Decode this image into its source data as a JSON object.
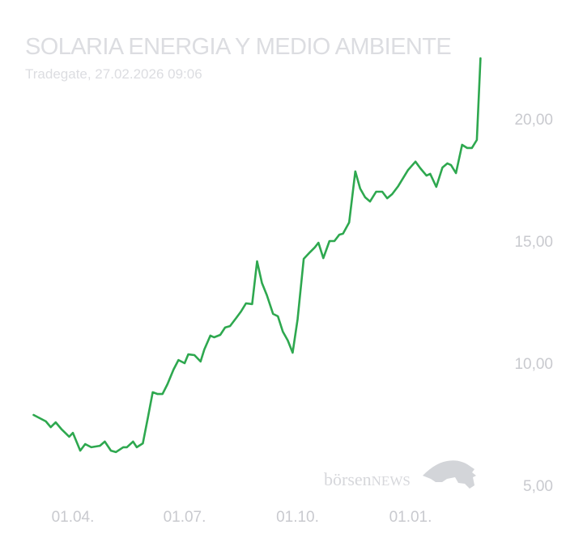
{
  "header": {
    "title": "SOLARIA ENERGIA Y MEDIO AMBIENTE",
    "subtitle": "Tradegate, 27.02.2026 09:06"
  },
  "watermark": {
    "brand": "börsenNEWS",
    "part1": "börsen",
    "part2": "NEWS"
  },
  "chart_data": {
    "type": "line",
    "title": "",
    "xlabel": "",
    "ylabel": "",
    "line_color": "#2ea84f",
    "y_axis_position": "right",
    "grid": false,
    "ylim": [
      5,
      22.5
    ],
    "y_ticks": [
      {
        "value": 5,
        "label": "5,00"
      },
      {
        "value": 10,
        "label": "10,00"
      },
      {
        "value": 15,
        "label": "15,00"
      },
      {
        "value": 20,
        "label": "20,00"
      }
    ],
    "x_ticks": [
      {
        "date": "2025-04-01",
        "label": "01.04."
      },
      {
        "date": "2025-07-01",
        "label": "01.07."
      },
      {
        "date": "2025-10-01",
        "label": "01.10."
      },
      {
        "date": "2026-01-01",
        "label": "01.01."
      }
    ],
    "series": [
      {
        "points": [
          [
            "2025-02-28",
            7.88
          ],
          [
            "2025-03-10",
            7.62
          ],
          [
            "2025-03-14",
            7.38
          ],
          [
            "2025-03-18",
            7.58
          ],
          [
            "2025-03-23",
            7.28
          ],
          [
            "2025-03-29",
            6.99
          ],
          [
            "2025-04-01",
            7.15
          ],
          [
            "2025-04-07",
            6.42
          ],
          [
            "2025-04-11",
            6.69
          ],
          [
            "2025-04-16",
            6.56
          ],
          [
            "2025-04-23",
            6.62
          ],
          [
            "2025-04-27",
            6.79
          ],
          [
            "2025-05-02",
            6.42
          ],
          [
            "2025-05-06",
            6.36
          ],
          [
            "2025-05-12",
            6.56
          ],
          [
            "2025-05-15",
            6.56
          ],
          [
            "2025-05-20",
            6.79
          ],
          [
            "2025-05-23",
            6.56
          ],
          [
            "2025-05-28",
            6.72
          ],
          [
            "2025-06-01",
            7.75
          ],
          [
            "2025-06-05",
            8.81
          ],
          [
            "2025-06-09",
            8.74
          ],
          [
            "2025-06-13",
            8.74
          ],
          [
            "2025-06-17",
            9.14
          ],
          [
            "2025-06-22",
            9.74
          ],
          [
            "2025-06-26",
            10.13
          ],
          [
            "2025-07-01",
            10.0
          ],
          [
            "2025-07-04",
            10.36
          ],
          [
            "2025-07-09",
            10.33
          ],
          [
            "2025-07-14",
            10.07
          ],
          [
            "2025-07-17",
            10.56
          ],
          [
            "2025-07-22",
            11.13
          ],
          [
            "2025-07-25",
            11.06
          ],
          [
            "2025-07-30",
            11.16
          ],
          [
            "2025-08-03",
            11.46
          ],
          [
            "2025-08-07",
            11.52
          ],
          [
            "2025-08-12",
            11.85
          ],
          [
            "2025-08-16",
            12.12
          ],
          [
            "2025-08-20",
            12.45
          ],
          [
            "2025-08-25",
            12.42
          ],
          [
            "2025-08-29",
            14.17
          ],
          [
            "2025-09-02",
            13.28
          ],
          [
            "2025-09-06",
            12.78
          ],
          [
            "2025-09-11",
            12.02
          ],
          [
            "2025-09-15",
            11.92
          ],
          [
            "2025-09-19",
            11.29
          ],
          [
            "2025-09-23",
            10.93
          ],
          [
            "2025-09-27",
            10.43
          ],
          [
            "2025-10-01",
            11.79
          ],
          [
            "2025-10-06",
            14.27
          ],
          [
            "2025-10-11",
            14.54
          ],
          [
            "2025-10-15",
            14.74
          ],
          [
            "2025-10-18",
            14.93
          ],
          [
            "2025-10-22",
            14.3
          ],
          [
            "2025-10-27",
            15.0
          ],
          [
            "2025-10-31",
            15.0
          ],
          [
            "2025-11-04",
            15.26
          ],
          [
            "2025-11-07",
            15.3
          ],
          [
            "2025-11-12",
            15.76
          ],
          [
            "2025-11-17",
            17.85
          ],
          [
            "2025-11-21",
            17.15
          ],
          [
            "2025-11-25",
            16.79
          ],
          [
            "2025-11-29",
            16.62
          ],
          [
            "2025-12-04",
            17.02
          ],
          [
            "2025-12-09",
            17.02
          ],
          [
            "2025-12-13",
            16.75
          ],
          [
            "2025-12-17",
            16.92
          ],
          [
            "2025-12-22",
            17.25
          ],
          [
            "2025-12-26",
            17.58
          ],
          [
            "2025-12-30",
            17.91
          ],
          [
            "2026-01-05",
            18.25
          ],
          [
            "2026-01-09",
            17.98
          ],
          [
            "2026-01-14",
            17.68
          ],
          [
            "2026-01-17",
            17.75
          ],
          [
            "2026-01-22",
            17.22
          ],
          [
            "2026-01-27",
            18.01
          ],
          [
            "2026-01-31",
            18.18
          ],
          [
            "2026-02-03",
            18.11
          ],
          [
            "2026-02-07",
            17.78
          ],
          [
            "2026-02-12",
            18.94
          ],
          [
            "2026-02-16",
            18.81
          ],
          [
            "2026-02-20",
            18.81
          ],
          [
            "2026-02-24",
            19.14
          ],
          [
            "2026-02-27",
            22.48
          ]
        ]
      }
    ]
  }
}
